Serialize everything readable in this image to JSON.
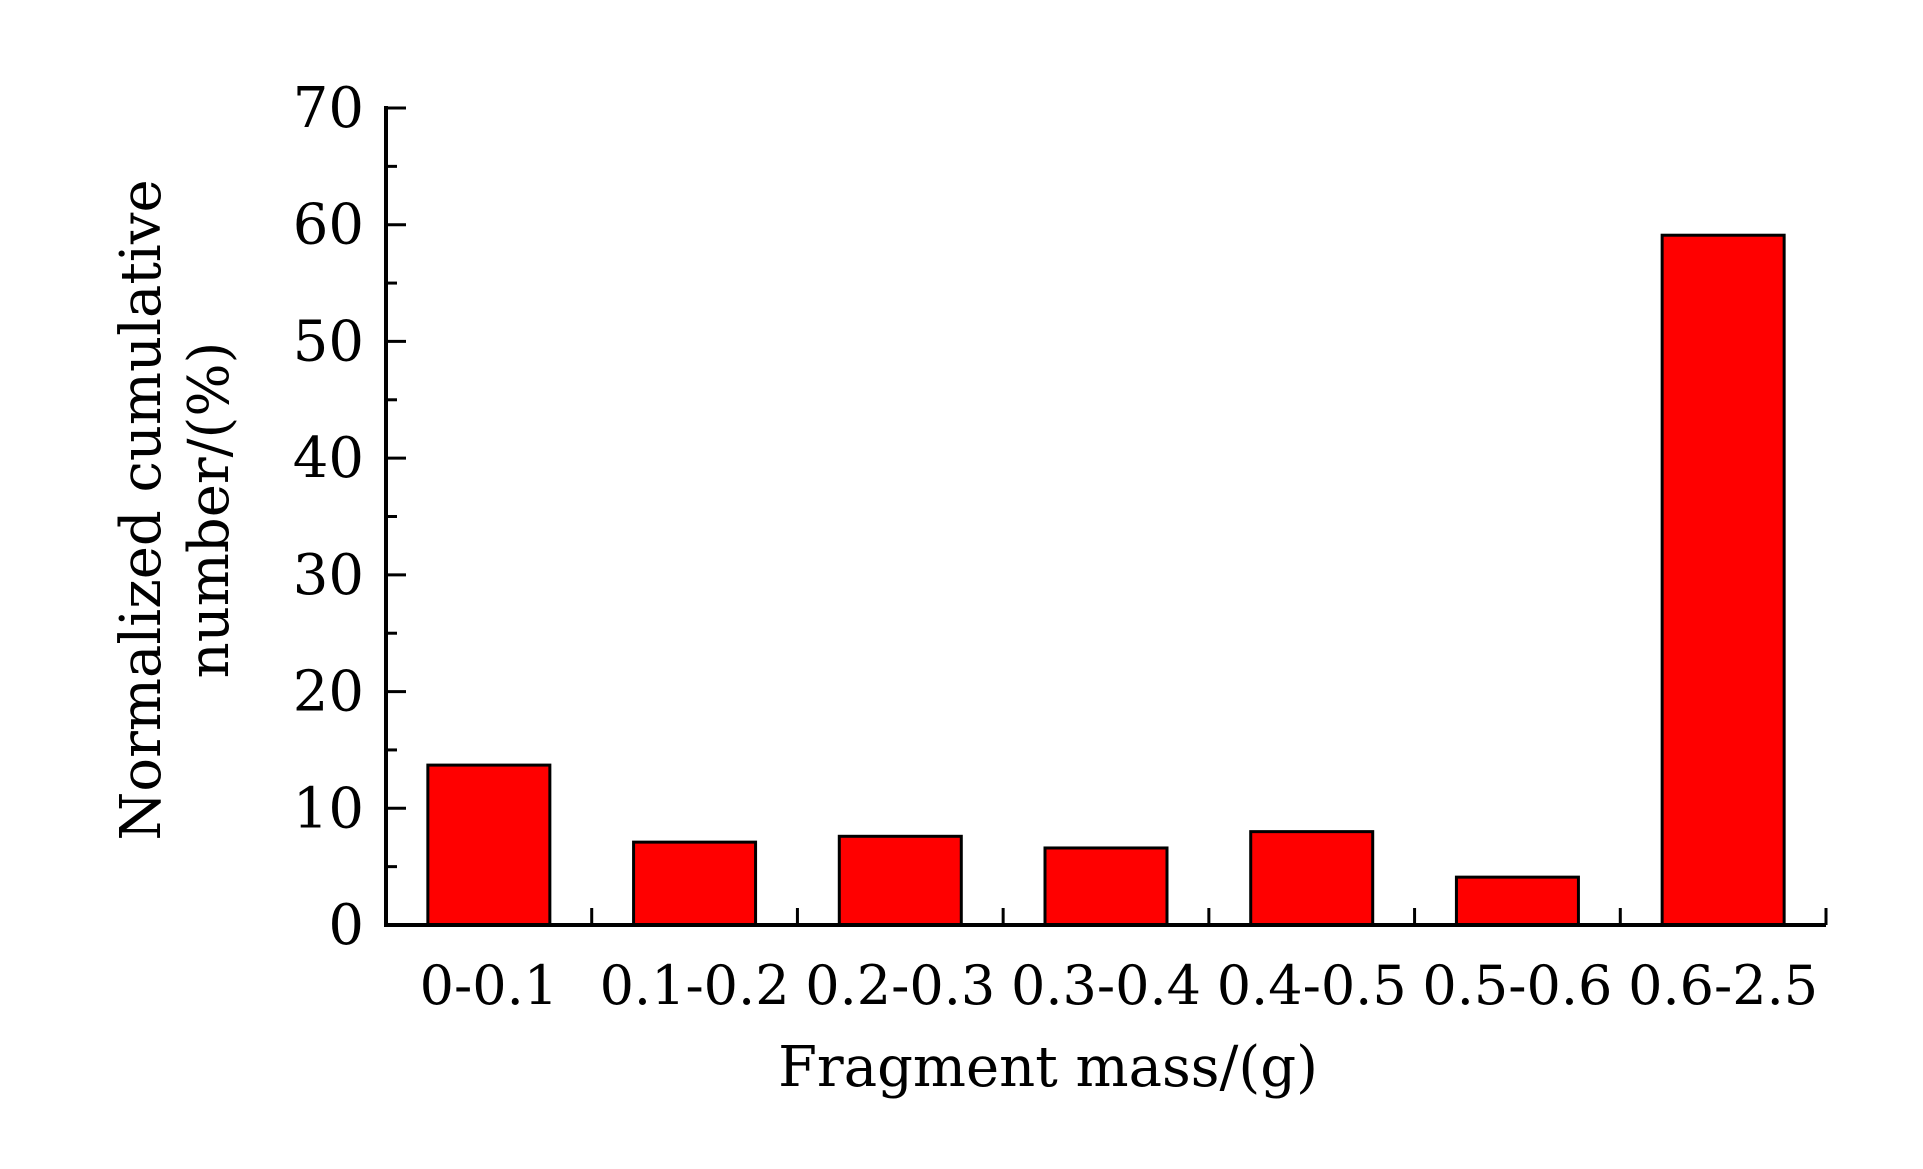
{
  "chart_data": {
    "type": "bar",
    "categories": [
      "0-0.1",
      "0.1-0.2",
      "0.2-0.3",
      "0.3-0.4",
      "0.4-0.5",
      "0.5-0.6",
      "0.6-2.5"
    ],
    "values": [
      13.7,
      7.1,
      7.6,
      6.6,
      8.0,
      4.1,
      59.1
    ],
    "xlabel": "Fragment mass/(g)",
    "ylabel_lines": [
      "Normalized cumulative",
      "number/(%)"
    ],
    "ylim": [
      0,
      70
    ],
    "yticks": [
      0,
      10,
      20,
      30,
      40,
      50,
      60,
      70
    ],
    "grid": false,
    "legend": "none",
    "bar_color": "#ff0000"
  }
}
